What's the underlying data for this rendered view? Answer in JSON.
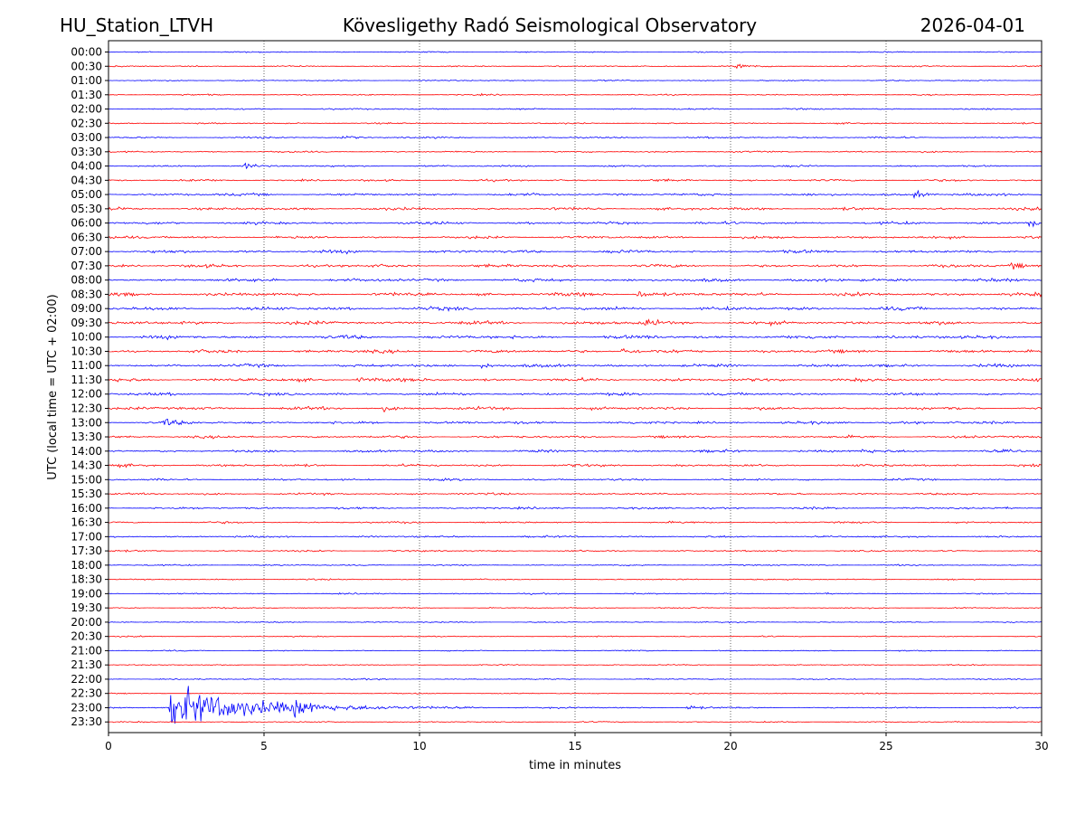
{
  "header": {
    "station": "HU_Station_LTVH",
    "observatory": "Kövesligethy Radó Seismological Observatory",
    "date": "2026-04-01"
  },
  "chart_data": {
    "type": "line",
    "title": "Kövesligethy Radó Seismological Observatory",
    "xlabel": "time in minutes",
    "ylabel": "UTC (local time = UTC + 02:00)",
    "xlim": [
      0,
      30
    ],
    "x_ticks": [
      "0",
      "5",
      "10",
      "15",
      "20",
      "25",
      "30"
    ],
    "x_grid": "dotted vertical at each 5 minutes",
    "colors": [
      "#0000ff",
      "#ff0000"
    ],
    "trace_labels": [
      "00:00",
      "00:30",
      "01:00",
      "01:30",
      "02:00",
      "02:30",
      "03:00",
      "03:30",
      "04:00",
      "04:30",
      "05:00",
      "05:30",
      "06:00",
      "06:30",
      "07:00",
      "07:30",
      "08:00",
      "08:30",
      "09:00",
      "09:30",
      "10:00",
      "10:30",
      "11:00",
      "11:30",
      "12:00",
      "12:30",
      "13:00",
      "13:30",
      "14:00",
      "14:30",
      "15:00",
      "15:30",
      "16:00",
      "16:30",
      "17:00",
      "17:30",
      "18:00",
      "18:30",
      "19:00",
      "19:30",
      "20:00",
      "20:30",
      "21:00",
      "21:30",
      "22:00",
      "22:30",
      "23:00",
      "23:30"
    ],
    "noise_level": [
      0.1,
      0.12,
      0.1,
      0.12,
      0.14,
      0.12,
      0.14,
      0.14,
      0.16,
      0.18,
      0.22,
      0.24,
      0.24,
      0.24,
      0.26,
      0.26,
      0.28,
      0.3,
      0.3,
      0.3,
      0.3,
      0.28,
      0.26,
      0.28,
      0.24,
      0.26,
      0.24,
      0.22,
      0.22,
      0.22,
      0.18,
      0.18,
      0.18,
      0.16,
      0.16,
      0.14,
      0.12,
      0.12,
      0.12,
      0.1,
      0.1,
      0.1,
      0.1,
      0.1,
      0.1,
      0.1,
      0.12,
      0.1
    ],
    "events": [
      {
        "trace": "00:30",
        "minute": 20.2,
        "amplitude": 0.5
      },
      {
        "trace": "03:00",
        "minute": 7.5,
        "amplitude": 0.5
      },
      {
        "trace": "04:00",
        "minute": 4.4,
        "amplitude": 0.6
      },
      {
        "trace": "05:00",
        "minute": 25.9,
        "amplitude": 0.7
      },
      {
        "trace": "06:00",
        "minute": 29.6,
        "amplitude": 0.8
      },
      {
        "trace": "07:30",
        "minute": 29.0,
        "amplitude": 0.6
      },
      {
        "trace": "08:30",
        "minute": 17.0,
        "amplitude": 0.8
      },
      {
        "trace": "09:30",
        "minute": 17.2,
        "amplitude": 0.8
      },
      {
        "trace": "10:30",
        "minute": 16.5,
        "amplitude": 0.7
      },
      {
        "trace": "11:00",
        "minute": 12.0,
        "amplitude": 0.6
      },
      {
        "trace": "11:30",
        "minute": 8.0,
        "amplitude": 0.6
      },
      {
        "trace": "12:30",
        "minute": 8.8,
        "amplitude": 0.5
      },
      {
        "trace": "13:00",
        "minute": 1.8,
        "amplitude": 0.6
      },
      {
        "trace": "14:00",
        "minute": 24.2,
        "amplitude": 0.5
      },
      {
        "trace": "23:00",
        "minute": 2.0,
        "amplitude": 3.6
      },
      {
        "trace": "23:00",
        "minute": 6.0,
        "amplitude": 1.6
      },
      {
        "trace": "23:00",
        "minute": 18.6,
        "amplitude": 0.6
      }
    ]
  }
}
